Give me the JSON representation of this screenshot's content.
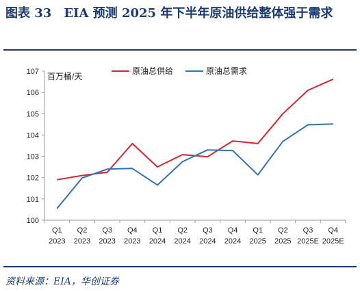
{
  "figure": {
    "title": "图表 33　EIA 预测 2025 年下半年原油供给整体强于需求",
    "source": "资料来源：EIA，华创证券"
  },
  "chart_data": {
    "type": "line",
    "title": "",
    "ylabel": "百万桶/天",
    "xlabel": "",
    "ylim": [
      100,
      107
    ],
    "yticks": [
      100,
      101,
      102,
      103,
      104,
      105,
      106,
      107
    ],
    "categories": [
      [
        "Q1",
        "2023"
      ],
      [
        "Q2",
        "2023"
      ],
      [
        "Q3",
        "2023"
      ],
      [
        "Q4",
        "2023"
      ],
      [
        "Q1",
        "2024"
      ],
      [
        "Q2",
        "2024"
      ],
      [
        "Q3",
        "2024"
      ],
      [
        "Q4",
        "2024"
      ],
      [
        "Q1",
        "2025"
      ],
      [
        "Q2",
        "2025"
      ],
      [
        "Q3",
        "2025E"
      ],
      [
        "Q4",
        "2025E"
      ]
    ],
    "legend_position": "top",
    "grid": false,
    "series": [
      {
        "name": "原油总供给",
        "color": "#d9232e",
        "values": [
          101.9,
          102.1,
          102.25,
          103.6,
          102.5,
          103.08,
          102.98,
          103.72,
          103.6,
          105.0,
          106.1,
          106.62
        ]
      },
      {
        "name": "原油总需求",
        "color": "#2f72b6",
        "values": [
          100.55,
          101.98,
          102.4,
          102.43,
          101.65,
          102.75,
          103.3,
          103.27,
          102.13,
          103.7,
          104.48,
          104.52
        ]
      }
    ]
  }
}
